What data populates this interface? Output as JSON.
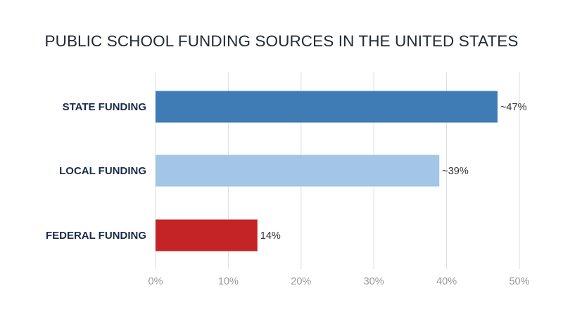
{
  "chart_data": {
    "type": "bar",
    "orientation": "horizontal",
    "title": "PUBLIC SCHOOL FUNDING SOURCES IN THE UNITED STATES",
    "categories": [
      "STATE FUNDING",
      "LOCAL FUNDING",
      "FEDERAL FUNDING"
    ],
    "values": [
      47,
      39,
      14
    ],
    "data_labels": [
      "~47%",
      "~39%",
      "14%"
    ],
    "colors": [
      "#3f7bb5",
      "#a3c5e6",
      "#c42426"
    ],
    "xlim": [
      0,
      50
    ],
    "x_ticks": [
      0,
      10,
      20,
      30,
      40,
      50
    ],
    "x_tick_labels": [
      "0%",
      "10%",
      "20%",
      "30%",
      "40%",
      "50%"
    ],
    "grid": "vertical",
    "legend": "none"
  }
}
